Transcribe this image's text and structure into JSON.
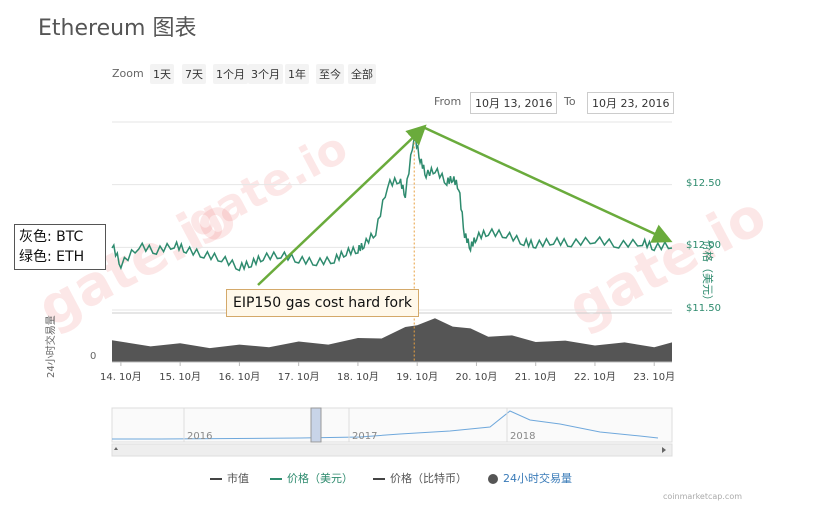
{
  "title": "Ethereum 图表",
  "zoom": {
    "label": "Zoom",
    "buttons": [
      "1天",
      "7天",
      "1个月",
      "3个月",
      "1年",
      "至今",
      "全部"
    ]
  },
  "range": {
    "from_label": "From",
    "from_value": "10月 13, 2016",
    "to_label": "To",
    "to_value": "10月 23, 2016"
  },
  "price_axis_label": "价格（美元）",
  "volume_axis_label": "24小时交易量",
  "note": {
    "line1": "灰色: BTC",
    "line2": "绿色: ETH"
  },
  "annotation": "EIP150 gas cost hard fork",
  "credit": "coinmarketcap.com",
  "watermark": "gate.io",
  "colors": {
    "eth": "#2e8b6e",
    "volume": "#555555",
    "arrow": "#6aab3c",
    "grid": "#e6e6e6",
    "navigator": "#6fa8dc"
  },
  "legend": [
    {
      "label": "市值",
      "color": "#444444",
      "kind": "line"
    },
    {
      "label": "价格（美元）",
      "color": "#2e8b6e",
      "kind": "line"
    },
    {
      "label": "价格（比特币）",
      "color": "#444444",
      "kind": "line"
    },
    {
      "label": "24小时交易量",
      "color": "#555555",
      "kind": "dot"
    }
  ],
  "chart_data": {
    "type": "line",
    "x_ticks": [
      "14. 10月",
      "15. 10月",
      "16. 10月",
      "17. 10月",
      "18. 10月",
      "19. 10月",
      "20. 10月",
      "21. 10月",
      "22. 10月",
      "23. 10月"
    ],
    "y_ticks": [
      "$11.50",
      "$12.00",
      "$12.50"
    ],
    "ylim": [
      11.5,
      13.0
    ],
    "volume_tick": "0",
    "series": [
      {
        "name": "价格（美元）",
        "x": [
          13.85,
          14.0,
          14.3,
          14.6,
          14.9,
          15.1,
          15.4,
          15.7,
          16.0,
          16.2,
          16.4,
          16.7,
          17.0,
          17.3,
          17.6,
          17.8,
          18.0,
          18.1,
          18.3,
          18.5,
          18.7,
          18.8,
          18.95,
          19.05,
          19.15,
          19.3,
          19.5,
          19.6,
          19.7,
          19.8,
          19.9,
          20.0,
          20.2,
          20.5,
          20.8,
          21.0,
          21.3,
          21.6,
          22.0,
          22.4,
          22.8,
          23.0,
          23.3
        ],
        "values": [
          12.02,
          11.86,
          12.01,
          11.97,
          12.02,
          11.98,
          11.94,
          11.91,
          11.84,
          11.87,
          11.92,
          11.94,
          11.9,
          11.88,
          11.9,
          11.96,
          11.98,
          12.02,
          12.12,
          12.5,
          12.54,
          12.42,
          12.9,
          12.7,
          12.58,
          12.62,
          12.52,
          12.55,
          12.48,
          12.1,
          12.0,
          12.08,
          12.12,
          12.1,
          12.04,
          12.02,
          12.05,
          12.03,
          12.06,
          12.02,
          12.04,
          12.0,
          12.02
        ]
      },
      {
        "name": "24小时交易量",
        "x": [
          13.85,
          14.5,
          15.0,
          15.5,
          16.0,
          16.5,
          17.0,
          17.5,
          18.0,
          18.4,
          18.8,
          19.0,
          19.3,
          19.6,
          19.9,
          20.2,
          20.6,
          21.0,
          21.5,
          22.0,
          22.5,
          23.0,
          23.3
        ],
        "values": [
          0.45,
          0.4,
          0.38,
          0.36,
          0.35,
          0.38,
          0.42,
          0.44,
          0.5,
          0.58,
          0.75,
          0.88,
          0.95,
          0.85,
          0.72,
          0.62,
          0.56,
          0.5,
          0.44,
          0.42,
          0.4,
          0.38,
          0.4
        ]
      }
    ],
    "annotations": [
      "EIP150 gas cost hard fork"
    ],
    "navigator": {
      "years": [
        "2016",
        "2017",
        "2018"
      ]
    }
  }
}
